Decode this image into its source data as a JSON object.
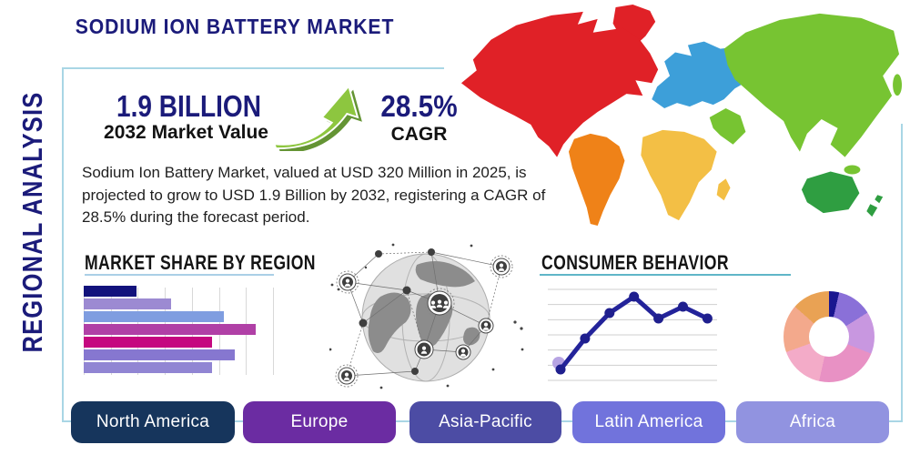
{
  "header": {
    "title": "SODIUM ION BATTERY MARKET",
    "side_label": "REGIONAL ANALYSIS"
  },
  "stats": {
    "market_value": "1.9 BILLION",
    "market_value_caption": "2032 Market Value",
    "cagr_value": "28.5%",
    "cagr_caption": "CAGR"
  },
  "description": "Sodium Ion Battery Market, valued at USD 320 Million in 2025, is projected to grow to USD 1.9 Billion by 2032, registering a CAGR of 28.5% during the forecast period.",
  "sections": {
    "market_share_title": "MARKET SHARE BY REGION",
    "consumer_behavior_title": "CONSUMER BEHAVIOR"
  },
  "region_buttons": [
    {
      "label": "North America",
      "color": "#16355c"
    },
    {
      "label": "Europe",
      "color": "#6b2ca2"
    },
    {
      "label": "Asia-Pacific",
      "color": "#4c4ca4"
    },
    {
      "label": "Latin America",
      "color": "#7173dc"
    },
    {
      "label": "Africa",
      "color": "#9193e0"
    }
  ],
  "theme": {
    "navy": "#1b1b7a",
    "panel_border": "#a9d6e5",
    "underline_blue": "#aacfe6",
    "underline_teal": "#5fb6c8",
    "arrow_green": "#8dc63f",
    "arrow_shadow": "#649434"
  },
  "map_colors": {
    "north_america": "#e02127",
    "greenland": "#e02127",
    "south_america": "#ef8218",
    "europe": "#3d9fd9",
    "africa": "#f3bf45",
    "asia": "#77c432",
    "middle_east": "#77c432",
    "australia": "#2f9e41",
    "new_zealand": "#2f9e41"
  },
  "chart_data": [
    {
      "id": "market_share_bars",
      "type": "bar",
      "orientation": "horizontal",
      "title": "MARKET SHARE BY REGION",
      "categories": [
        "",
        "",
        "",
        "",
        "",
        "",
        ""
      ],
      "values": [
        28,
        46,
        74,
        91,
        68,
        80,
        68
      ],
      "value_unit": "percent_of_axis",
      "colors": [
        "#12127c",
        "#9c8ad2",
        "#7f9de0",
        "#b040a6",
        "#c50880",
        "#8677d0",
        "#9185d3"
      ],
      "grid": "vertical",
      "gridline_count": 8,
      "axis_labels_visible": false
    },
    {
      "id": "consumer_behavior_line",
      "type": "line",
      "title": "CONSUMER BEHAVIOR",
      "x": [
        1,
        2,
        3,
        4,
        5,
        6,
        7
      ],
      "values": [
        12,
        46,
        74,
        92,
        68,
        81,
        68
      ],
      "value_unit": "percent_of_axis",
      "color": "#23239a",
      "point_color": "#1f1f8e",
      "first_point_halo_color": "#b7a4e3",
      "grid": "horizontal",
      "gridline_count": 7,
      "axis_labels_visible": false
    },
    {
      "id": "region_donut",
      "type": "pie",
      "title": "",
      "donut": true,
      "slices": [
        {
          "value": 3.6,
          "color": "#1a1690"
        },
        {
          "value": 12.5,
          "color": "#8a70d8"
        },
        {
          "value": 15.0,
          "color": "#c897e0"
        },
        {
          "value": 22.4,
          "color": "#e891c4"
        },
        {
          "value": 16.0,
          "color": "#f3abc8"
        },
        {
          "value": 17.0,
          "color": "#f3a98c"
        },
        {
          "value": 13.5,
          "color": "#e9a254"
        }
      ],
      "labels_visible": false
    }
  ]
}
